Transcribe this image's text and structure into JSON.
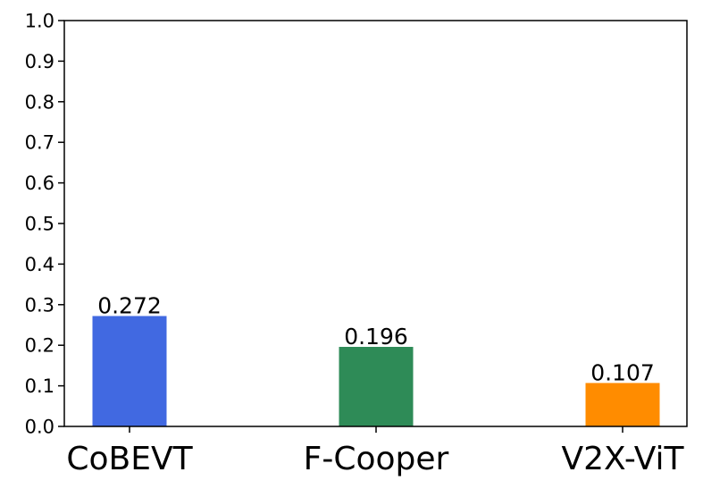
{
  "chart_data": {
    "type": "bar",
    "categories": [
      "CoBEVT",
      "F-Cooper",
      "V2X-ViT"
    ],
    "values": [
      0.272,
      0.196,
      0.107
    ],
    "value_labels": [
      "0.272",
      "0.196",
      "0.107"
    ],
    "colors": [
      "#4169E1",
      "#2E8B57",
      "#FF8C00"
    ],
    "ylim": [
      0,
      1.0
    ],
    "yticks": [
      "0.0",
      "0.1",
      "0.2",
      "0.3",
      "0.4",
      "0.5",
      "0.6",
      "0.7",
      "0.8",
      "0.9",
      "1.0"
    ],
    "grid": false,
    "legend": "none",
    "title": "",
    "xlabel": "",
    "ylabel": ""
  }
}
